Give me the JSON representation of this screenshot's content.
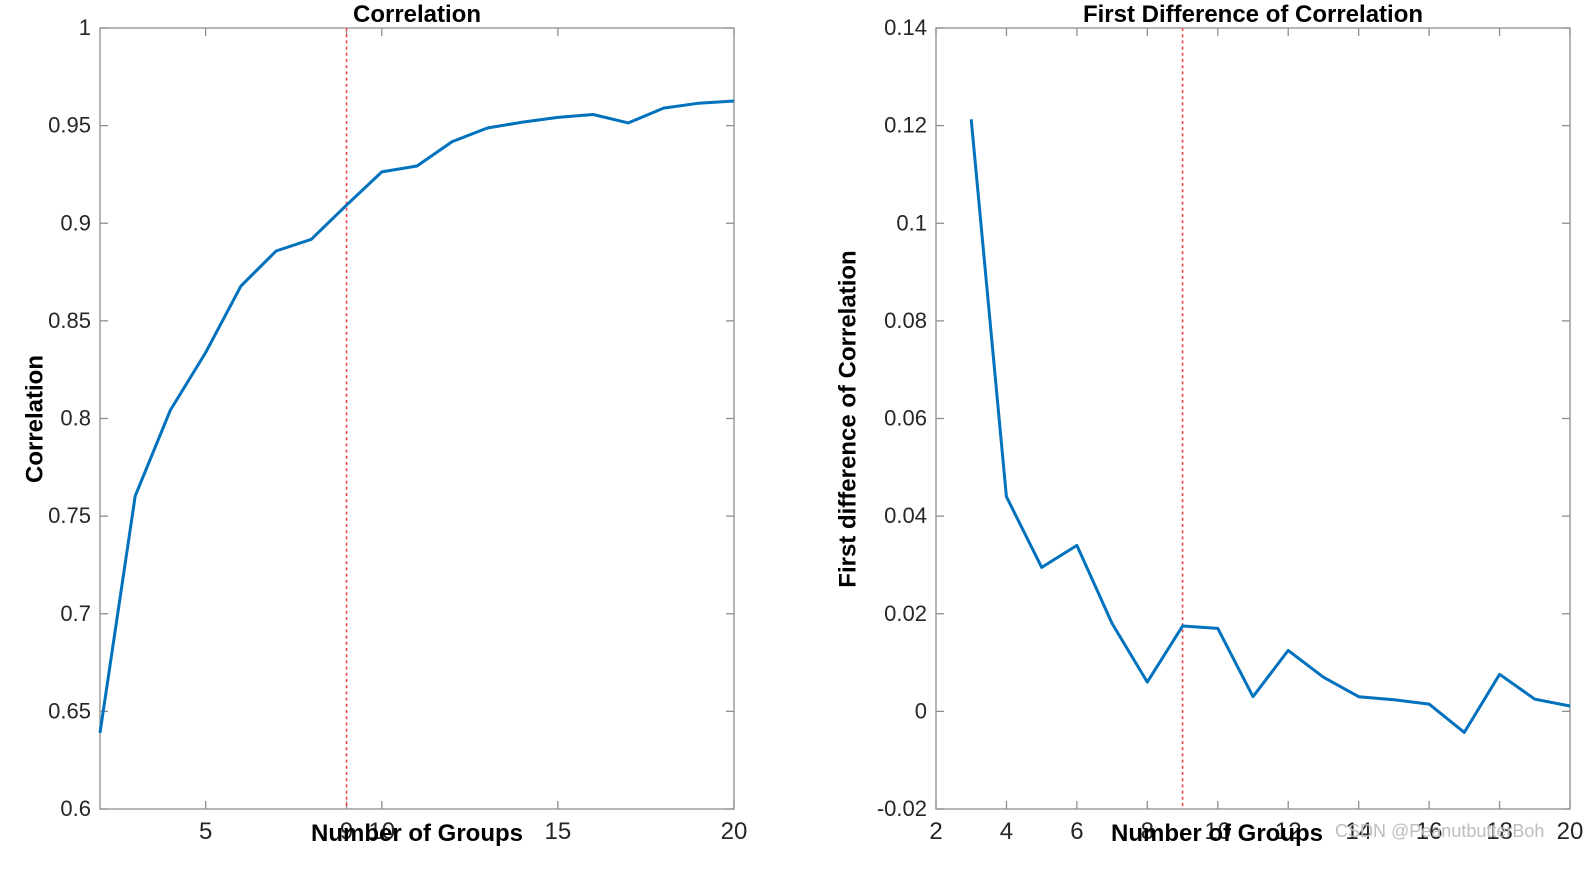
{
  "watermark": {
    "text": "CSDN @PeanutbutterBoh",
    "color": "#bdbdbd"
  },
  "colors": {
    "background": "#ffffff",
    "line_blue": "#0072BD",
    "vline_red": "#f04545",
    "axis_gray": "#8f8f8f",
    "tick_label": "#262626",
    "text_black": "#000000",
    "watermark_gray": "#bdbdbd"
  },
  "chart_data": [
    {
      "type": "line",
      "title": "Correlation",
      "xlabel": "Number of Groups",
      "ylabel": "Correlation",
      "xlim": [
        2,
        20
      ],
      "ylim": [
        0.6,
        1.0
      ],
      "xticks": [
        5,
        9,
        10,
        15,
        20
      ],
      "xtick_labels": [
        "5",
        "9",
        "10",
        "15",
        "20"
      ],
      "yticks": [
        0.6,
        0.65,
        0.7,
        0.75,
        0.8,
        0.85,
        0.9,
        0.95,
        1.0
      ],
      "ytick_labels": [
        "0.6",
        "0.65",
        "0.7",
        "0.75",
        "0.8",
        "0.85",
        "0.9",
        "0.95",
        "1"
      ],
      "vline_x": 9,
      "grid": false,
      "legend": "none",
      "line_color": "#0072BD",
      "vline_color": "#f04545",
      "x": [
        2,
        3,
        4,
        5,
        6,
        7,
        8,
        9,
        10,
        11,
        12,
        13,
        14,
        15,
        16,
        17,
        18,
        19,
        20
      ],
      "y": [
        0.639,
        0.7603,
        0.8043,
        0.8338,
        0.8678,
        0.8858,
        0.8918,
        0.9093,
        0.9263,
        0.9293,
        0.9418,
        0.9488,
        0.9518,
        0.9542,
        0.9557,
        0.9514,
        0.959,
        0.9615,
        0.9626
      ]
    },
    {
      "type": "line",
      "title": "First Difference of Correlation",
      "xlabel": "Number of Groups",
      "ylabel": "First difference of Correlation",
      "xlim": [
        2,
        20
      ],
      "ylim": [
        -0.02,
        0.14
      ],
      "xticks": [
        2,
        4,
        6,
        8,
        10,
        12,
        14,
        16,
        18,
        20
      ],
      "xtick_labels": [
        "2",
        "4",
        "6",
        "8",
        "10",
        "12",
        "14",
        "16",
        "18",
        "20"
      ],
      "yticks": [
        -0.02,
        0,
        0.02,
        0.04,
        0.06,
        0.08,
        0.1,
        0.12,
        0.14
      ],
      "ytick_labels": [
        "-0.02",
        "0",
        "0.02",
        "0.04",
        "0.06",
        "0.08",
        "0.1",
        "0.12",
        "0.14"
      ],
      "vline_x": 9,
      "grid": false,
      "legend": "none",
      "line_color": "#0072BD",
      "vline_color": "#f04545",
      "x": [
        3,
        4,
        5,
        6,
        7,
        8,
        9,
        10,
        11,
        12,
        13,
        14,
        15,
        16,
        17,
        18,
        19,
        20
      ],
      "y": [
        0.1213,
        0.044,
        0.0295,
        0.034,
        0.018,
        0.006,
        0.0175,
        0.017,
        0.003,
        0.0125,
        0.007,
        0.003,
        0.0024,
        0.0015,
        -0.0043,
        0.0076,
        0.0025,
        0.0011
      ]
    }
  ]
}
